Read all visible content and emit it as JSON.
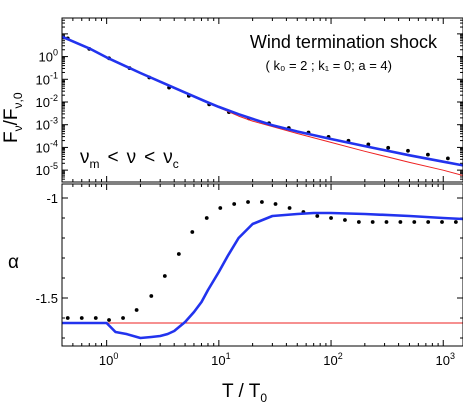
{
  "chart_data": [
    {
      "type": "line",
      "panel": "top",
      "title": "Wind termination shock",
      "subtitle": "( k₀ = 2 ; k₁ = 0; a = 4)",
      "annotation": {
        "nu": "ν",
        "m": "m",
        "lt": "<",
        "c": "c"
      },
      "ylabel": {
        "F": "F",
        "nu": "ν",
        "sep": "/F",
        "sub0": "ν,0"
      },
      "xscale": "log",
      "yscale": "log",
      "xlim": [
        0.4,
        1500
      ],
      "ylim": [
        3e-06,
        50
      ],
      "yticks": [
        {
          "value": 1,
          "base": "10",
          "exp": "0"
        },
        {
          "value": 0.1,
          "base": "10",
          "exp": "-1"
        },
        {
          "value": 0.01,
          "base": "10",
          "exp": "-2"
        },
        {
          "value": 0.001,
          "base": "10",
          "exp": "-3"
        },
        {
          "value": 0.0001,
          "base": "10",
          "exp": "-4"
        },
        {
          "value": 1e-05,
          "base": "10",
          "exp": "-5"
        }
      ],
      "series": [
        {
          "style": "dots",
          "color": "#000000",
          "x": [
            0.45,
            0.7,
            1.05,
            1.6,
            2.4,
            3.6,
            5.4,
            8.2,
            12.3,
            18.5,
            28,
            42,
            63,
            95,
            143,
            215,
            323,
            485,
            730,
            1100
          ],
          "y": [
            6.35,
            2.18,
            0.84,
            0.31,
            0.12,
            0.043,
            0.0187,
            0.0079,
            0.0036,
            0.0019,
            0.00115,
            0.00071,
            0.00045,
            0.00029,
            0.000195,
            0.000135,
            9.6e-05,
            7.1e-05,
            4.8e-05,
            3.3e-05
          ]
        },
        {
          "style": "thin",
          "color": "#ee2222",
          "x": [
            0.4,
            0.7,
            1,
            2,
            3,
            5,
            8,
            10,
            15,
            20,
            50,
            100,
            200,
            500,
            1000,
            1500
          ],
          "y": [
            7.5,
            2.3,
            0.92,
            0.19,
            0.078,
            0.026,
            0.0092,
            0.0057,
            0.0024,
            0.00144,
            0.00041,
            0.000166,
            6.75e-05,
            2.19e-05,
            9.9e-06,
            5.8e-06
          ]
        },
        {
          "style": "thick",
          "color": "#2233ee",
          "x": [
            0.4,
            0.7,
            1,
            2,
            3,
            5,
            8,
            10,
            15,
            20,
            30,
            50,
            100,
            200,
            500,
            1000,
            1500
          ],
          "y": [
            7.5,
            2.3,
            0.92,
            0.19,
            0.078,
            0.026,
            0.0095,
            0.0061,
            0.0029,
            0.0018,
            0.00095,
            0.0005,
            0.000234,
            0.000114,
            4.51e-05,
            2.34e-05,
            1.62e-05
          ]
        }
      ]
    },
    {
      "type": "line",
      "panel": "bottom",
      "ylabel": "α",
      "xlabel": {
        "T": "T",
        "sep": " / T",
        "sub0": "0"
      },
      "xscale": "log",
      "xlim": [
        0.4,
        1500
      ],
      "ylim": [
        -1.74,
        -0.93
      ],
      "yticks": [
        {
          "value": -1,
          "label": "-1"
        },
        {
          "value": -1.5,
          "label": "-1.5"
        }
      ],
      "xticks": [
        {
          "value": 1,
          "base": "10",
          "exp": "0"
        },
        {
          "value": 10,
          "base": "10",
          "exp": "1"
        },
        {
          "value": 100,
          "base": "10",
          "exp": "2"
        },
        {
          "value": 1000,
          "base": "10",
          "exp": "3"
        }
      ],
      "series": [
        {
          "style": "dots",
          "color": "#000000",
          "x": [
            0.45,
            0.6,
            0.8,
            1.05,
            1.4,
            1.85,
            2.5,
            3.3,
            4.4,
            5.8,
            7.8,
            10.3,
            13.7,
            18.2,
            24.2,
            32,
            42.7,
            56.7,
            75.4,
            100,
            133,
            177,
            235,
            312,
            415,
            552,
            734,
            975,
            1296
          ],
          "y": [
            -1.6,
            -1.6,
            -1.6,
            -1.61,
            -1.6,
            -1.56,
            -1.49,
            -1.39,
            -1.28,
            -1.17,
            -1.1,
            -1.05,
            -1.03,
            -1.02,
            -1.02,
            -1.03,
            -1.05,
            -1.07,
            -1.09,
            -1.1,
            -1.11,
            -1.12,
            -1.12,
            -1.12,
            -1.12,
            -1.12,
            -1.12,
            -1.12,
            -1.12
          ]
        },
        {
          "style": "thin",
          "color": "#ee2222",
          "x": [
            0.4,
            1500
          ],
          "y": [
            -1.625,
            -1.625
          ]
        },
        {
          "style": "thick",
          "color": "#2233ee",
          "x": [
            0.4,
            0.8,
            1.0,
            1.2,
            1.5,
            2.0,
            2.5,
            3.0,
            3.5,
            4.0,
            5.0,
            6.0,
            7.0,
            8.0,
            10,
            12,
            15,
            20,
            30,
            50,
            70,
            100,
            200,
            500,
            1000,
            1500
          ],
          "y": [
            -1.625,
            -1.625,
            -1.625,
            -1.67,
            -1.68,
            -1.7,
            -1.695,
            -1.69,
            -1.68,
            -1.665,
            -1.62,
            -1.57,
            -1.52,
            -1.46,
            -1.37,
            -1.29,
            -1.2,
            -1.13,
            -1.09,
            -1.08,
            -1.075,
            -1.075,
            -1.08,
            -1.09,
            -1.1,
            -1.105
          ]
        }
      ]
    }
  ]
}
